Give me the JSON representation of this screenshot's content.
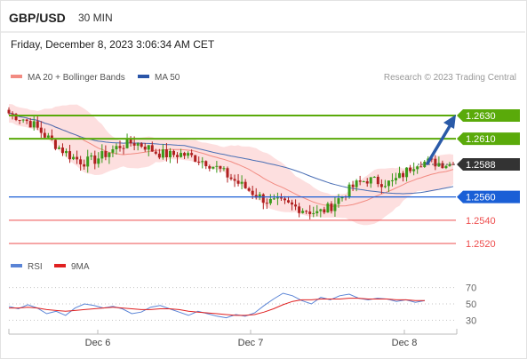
{
  "header": {
    "pair": "GBP/USD",
    "timeframe": "30 MIN",
    "timestamp": "Friday, December 8, 2023 3:06:34 AM CET"
  },
  "legend": {
    "ma20_label": "MA 20 + Bollinger Bands",
    "ma50_label": "MA 50",
    "credit": "Research © 2023 Trading Central"
  },
  "rsi_legend": {
    "rsi_label": "RSI",
    "ma_label": "9MA"
  },
  "colors": {
    "green": "#5aaa0a",
    "blue": "#1a5fd6",
    "red": "#ee4d4d",
    "dark": "#333333",
    "arrow": "#2a5aa8",
    "band": "#fcd7d7",
    "ma20": "#f28b82",
    "ma50": "#4a6fb5"
  },
  "chart_data": [
    {
      "type": "candlestick",
      "ylim": [
        1.2508,
        1.2662
      ],
      "x_ticks": [
        "Dec 6",
        "Dec 7",
        "Dec 8"
      ],
      "levels": [
        {
          "label": "1.2630",
          "value": 1.263,
          "kind": "resistance"
        },
        {
          "label": "1.2610",
          "value": 1.261,
          "kind": "resistance"
        },
        {
          "label": "1.2588",
          "value": 1.2588,
          "kind": "current"
        },
        {
          "label": "1.2560",
          "value": 1.256,
          "kind": "support"
        },
        {
          "label": "1.2540",
          "value": 1.254,
          "kind": "support_red"
        },
        {
          "label": "1.2520",
          "value": 1.252,
          "kind": "support_red"
        }
      ],
      "series": [
        {
          "name": "MA 20 + Bollinger Bands"
        },
        {
          "name": "MA 50"
        }
      ],
      "close_path": [
        1.2632,
        1.2628,
        1.2622,
        1.2612,
        1.2603,
        1.2595,
        1.259,
        1.2592,
        1.2598,
        1.2604,
        1.2607,
        1.2604,
        1.2598,
        1.2596,
        1.2597,
        1.2594,
        1.259,
        1.2584,
        1.2576,
        1.2569,
        1.2562,
        1.2556,
        1.2555,
        1.2552,
        1.2549,
        1.2546,
        1.2551,
        1.2561,
        1.257,
        1.2575,
        1.2573,
        1.2572,
        1.258,
        1.259,
        1.259,
        1.2589,
        1.2588
      ]
    },
    {
      "type": "line",
      "title": "RSI",
      "ylim": [
        20,
        80
      ],
      "y_ticks": [
        70,
        50,
        30
      ],
      "series": [
        {
          "name": "RSI",
          "values": [
            47,
            44,
            49,
            45,
            38,
            41,
            36,
            45,
            50,
            48,
            45,
            47,
            44,
            38,
            40,
            46,
            48,
            44,
            40,
            36,
            41,
            38,
            35,
            33,
            37,
            35,
            39,
            48,
            56,
            63,
            60,
            54,
            50,
            58,
            55,
            60,
            62,
            57,
            55,
            57,
            56,
            53,
            55,
            52,
            54
          ]
        },
        {
          "name": "9MA",
          "values": [
            45,
            45,
            46,
            45,
            43,
            42,
            41,
            42,
            43,
            44,
            45,
            46,
            45,
            44,
            43,
            43,
            44,
            44,
            43,
            41,
            40,
            39,
            38,
            37,
            36,
            36,
            37,
            40,
            44,
            49,
            53,
            55,
            55,
            56,
            56,
            56,
            57,
            57,
            56,
            56,
            56,
            55,
            55,
            54,
            54
          ]
        }
      ]
    }
  ]
}
